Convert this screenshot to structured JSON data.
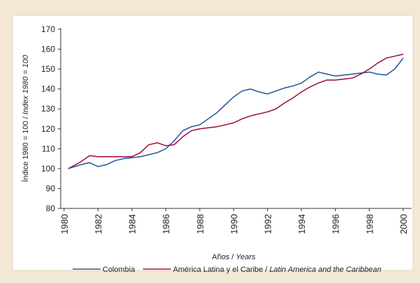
{
  "chart_data": {
    "type": "line",
    "ylabel": {
      "text": "Índice 1980 = 100 /",
      "italic": "Index 1980 = 100"
    },
    "xlabel": {
      "text": "Años /",
      "italic": "Years"
    },
    "x": [
      1980.25,
      1981,
      1981.5,
      1982,
      1982.5,
      1983,
      1983.5,
      1984,
      1984.5,
      1985,
      1985.5,
      1986,
      1986.5,
      1987,
      1987.5,
      1988,
      1988.5,
      1989,
      1989.5,
      1990,
      1990.5,
      1991,
      1991.5,
      1992,
      1992.5,
      1993,
      1993.5,
      1994,
      1994.5,
      1995,
      1995.5,
      1996,
      1996.5,
      1997,
      1997.5,
      1998,
      1998.5,
      1999,
      1999.5,
      2000
    ],
    "series": [
      {
        "name": "Colombia",
        "color": "#2b5e9c",
        "values": [
          100,
          102,
          103,
          101,
          102,
          104,
          105,
          105.5,
          106,
          107,
          108,
          110,
          114,
          119,
          121,
          122,
          125,
          128,
          132,
          136,
          139,
          140,
          138.5,
          137.5,
          139,
          140.5,
          141.5,
          143,
          146,
          148.5,
          147.5,
          146.5,
          147,
          147.5,
          148,
          148.5,
          147.5,
          147,
          150,
          155.5
        ]
      },
      {
        "name": "América Latina y el Caribe /",
        "name_italic": "Latin America and the Caribbean",
        "color": "#a3164c",
        "values": [
          100,
          103.5,
          106.5,
          106,
          106,
          106,
          106,
          106,
          108,
          112,
          113,
          111.5,
          112,
          116,
          119,
          120,
          120.5,
          121,
          122,
          123,
          125,
          126.5,
          127.5,
          128.5,
          130,
          133,
          135.5,
          138.5,
          141,
          143,
          144.5,
          144.5,
          145,
          145.5,
          147.5,
          150,
          153,
          155.5,
          156.5,
          157.5
        ]
      }
    ],
    "xlim": [
      1979.8,
      2000.5
    ],
    "xticks": [
      1980,
      1982,
      1984,
      1986,
      1988,
      1990,
      1992,
      1994,
      1996,
      1998,
      2000
    ],
    "ylim": [
      80,
      170
    ],
    "yticks": [
      80,
      90,
      100,
      110,
      120,
      130,
      140,
      150,
      160,
      170
    ],
    "grid": false,
    "legend": "bottom"
  }
}
